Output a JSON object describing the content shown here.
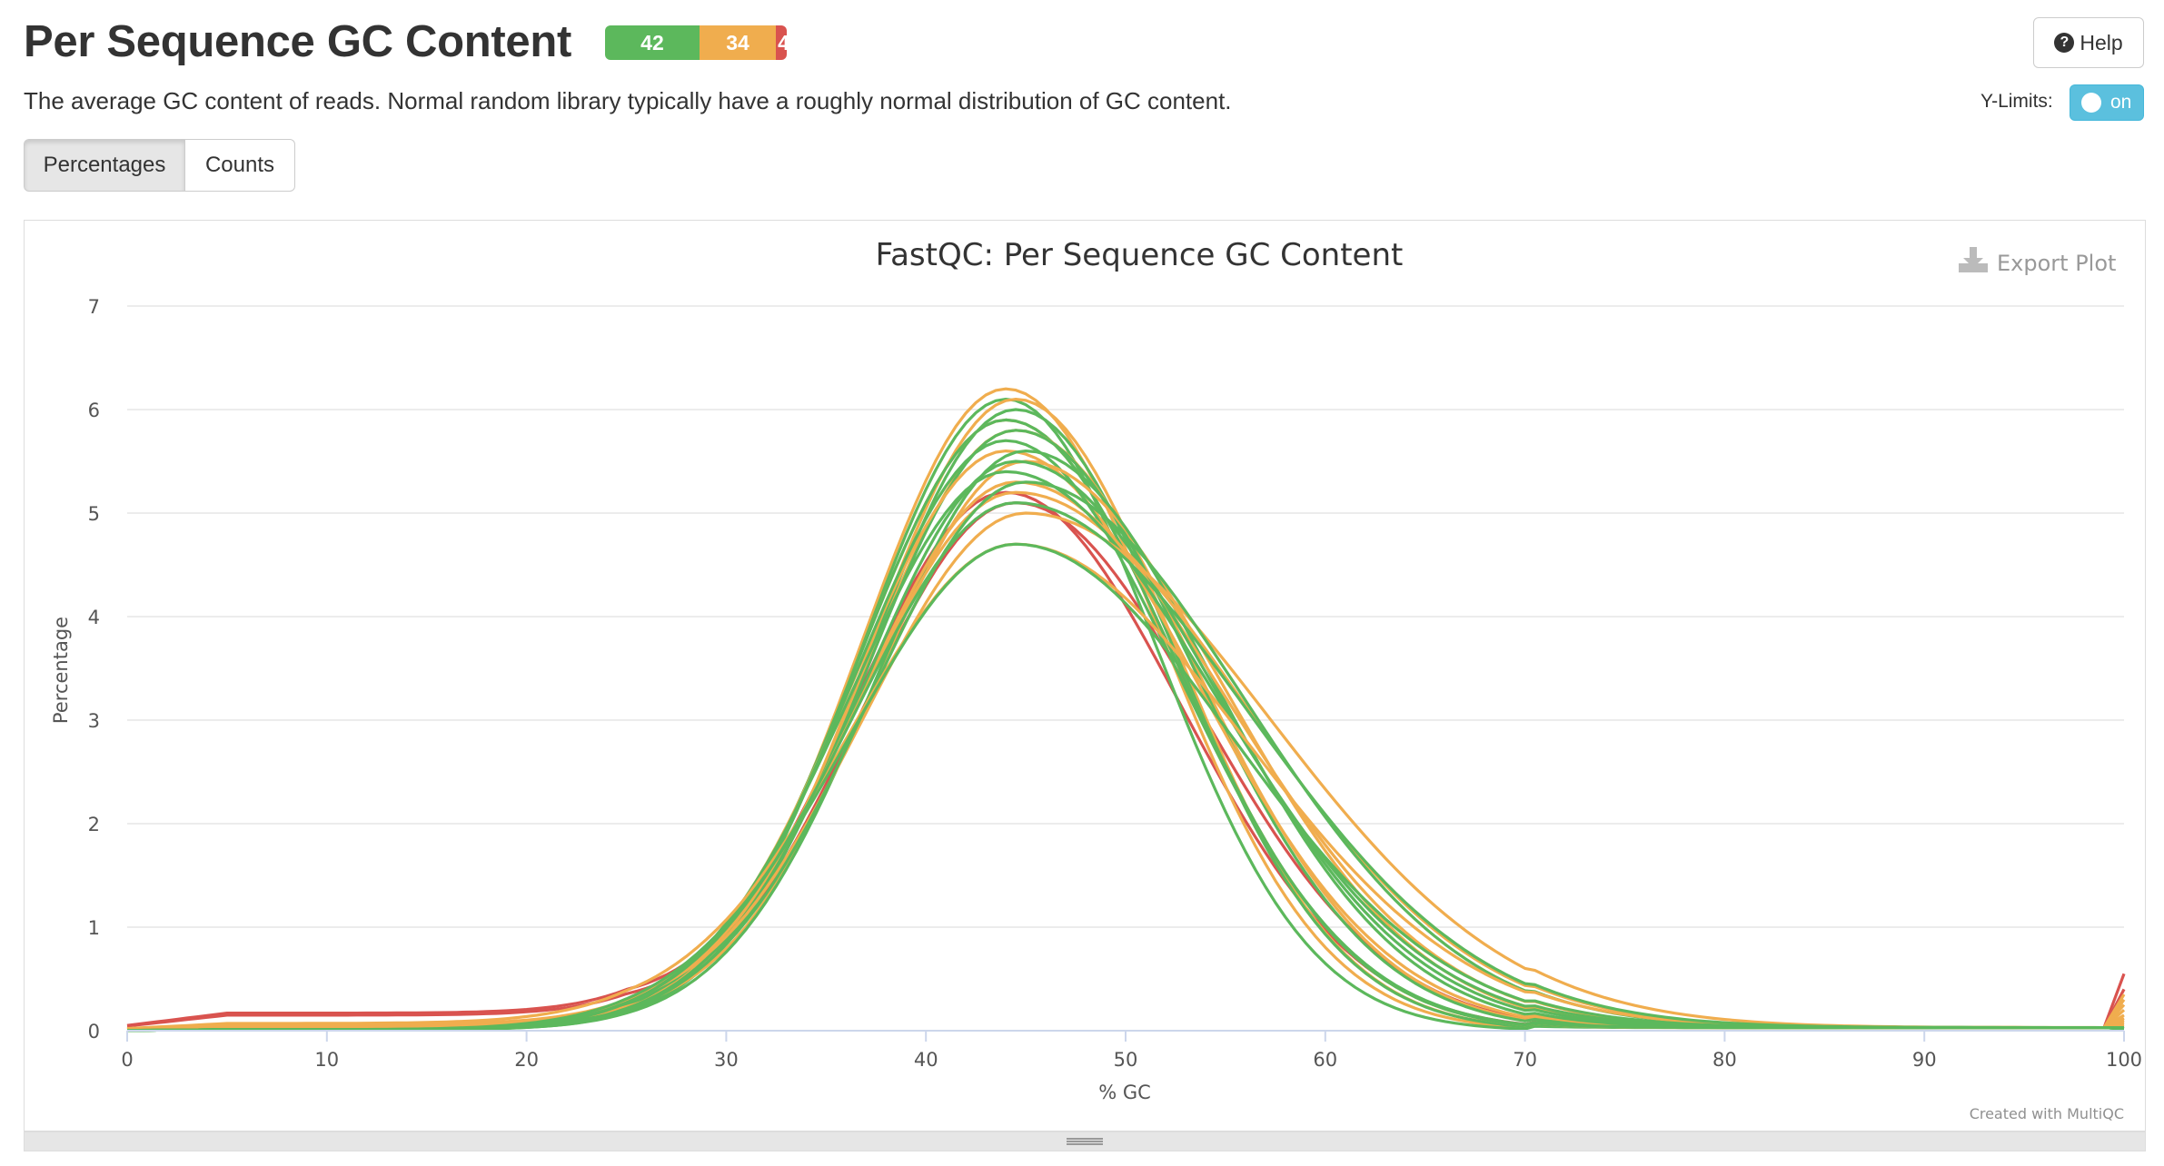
{
  "header": {
    "title": "Per Sequence GC Content",
    "description": "The average GC content of reads. Normal random library typically have a roughly normal distribution of GC content.",
    "help_label": "Help",
    "ylimits_label": "Y-Limits:",
    "ylimits_toggle": "on"
  },
  "status_bar": {
    "pass": "42",
    "warn": "34",
    "fail": "4",
    "colors": {
      "pass": "#5cb85c",
      "warn": "#f0ad4e",
      "fail": "#d9534f"
    }
  },
  "toggle_buttons": {
    "percentages": "Percentages",
    "counts": "Counts"
  },
  "plot": {
    "export_label": "Export Plot",
    "credit": "Created with MultiQC"
  },
  "chart_data": {
    "type": "line",
    "title": "FastQC: Per Sequence GC Content",
    "xlabel": "% GC",
    "ylabel": "Percentage",
    "xlim": [
      0,
      100
    ],
    "ylim": [
      0,
      7
    ],
    "xticks": [
      0,
      10,
      20,
      30,
      40,
      50,
      60,
      70,
      80,
      90,
      100
    ],
    "yticks": [
      0,
      1,
      2,
      3,
      4,
      5,
      6,
      7
    ],
    "grid": true,
    "legend": "none",
    "colors": {
      "pass": "#5cb85c",
      "warn": "#f0ad4e",
      "fail": "#d9534f"
    },
    "series": [
      {
        "status": "pass",
        "peak_x": 44,
        "peak_y": 6.1,
        "width": 7.2,
        "right_tail": 1.05,
        "baseline": 0.01,
        "end_y": 0.02
      },
      {
        "status": "pass",
        "peak_x": 44.5,
        "peak_y": 6.0,
        "width": 7.3,
        "right_tail": 1.1,
        "baseline": 0.01,
        "end_y": 0.02
      },
      {
        "status": "pass",
        "peak_x": 44,
        "peak_y": 5.9,
        "width": 7.4,
        "right_tail": 1.15,
        "baseline": 0.01,
        "end_y": 0.02
      },
      {
        "status": "pass",
        "peak_x": 44.5,
        "peak_y": 5.8,
        "width": 7.4,
        "right_tail": 1.2,
        "baseline": 0.01,
        "end_y": 0.03
      },
      {
        "status": "pass",
        "peak_x": 44,
        "peak_y": 5.7,
        "width": 7.5,
        "right_tail": 1.15,
        "baseline": 0.01,
        "end_y": 0.02
      },
      {
        "status": "pass",
        "peak_x": 45,
        "peak_y": 5.6,
        "width": 7.5,
        "right_tail": 1.25,
        "baseline": 0.01,
        "end_y": 0.03
      },
      {
        "status": "pass",
        "peak_x": 44.5,
        "peak_y": 5.5,
        "width": 7.6,
        "right_tail": 1.3,
        "baseline": 0.01,
        "end_y": 0.02
      },
      {
        "status": "pass",
        "peak_x": 44,
        "peak_y": 5.4,
        "width": 7.7,
        "right_tail": 1.35,
        "baseline": 0.01,
        "end_y": 0.03
      },
      {
        "status": "pass",
        "peak_x": 45,
        "peak_y": 5.3,
        "width": 7.8,
        "right_tail": 1.4,
        "baseline": 0.01,
        "end_y": 0.02
      },
      {
        "status": "pass",
        "peak_x": 44.5,
        "peak_y": 5.1,
        "width": 8.0,
        "right_tail": 1.45,
        "baseline": 0.01,
        "end_y": 0.02
      },
      {
        "status": "pass",
        "peak_x": 44.5,
        "peak_y": 4.7,
        "width": 8.3,
        "right_tail": 1.3,
        "baseline": 0.01,
        "end_y": 0.03
      },
      {
        "status": "warn",
        "peak_x": 44,
        "peak_y": 6.2,
        "width": 7.2,
        "right_tail": 1.1,
        "baseline": 0.03,
        "end_y": 0.05
      },
      {
        "status": "warn",
        "peak_x": 44.5,
        "peak_y": 6.1,
        "width": 7.3,
        "right_tail": 1.1,
        "baseline": 0.04,
        "end_y": 0.06
      },
      {
        "status": "warn",
        "peak_x": 44,
        "peak_y": 5.9,
        "width": 7.4,
        "right_tail": 1.15,
        "baseline": 0.05,
        "end_y": 0.1
      },
      {
        "status": "warn",
        "peak_x": 44.5,
        "peak_y": 5.8,
        "width": 7.5,
        "right_tail": 1.2,
        "baseline": 0.04,
        "end_y": 0.08
      },
      {
        "status": "warn",
        "peak_x": 44,
        "peak_y": 5.6,
        "width": 7.6,
        "right_tail": 1.25,
        "baseline": 0.05,
        "end_y": 0.12
      },
      {
        "status": "warn",
        "peak_x": 45,
        "peak_y": 5.5,
        "width": 7.6,
        "right_tail": 1.3,
        "baseline": 0.06,
        "end_y": 0.15
      },
      {
        "status": "warn",
        "peak_x": 44.5,
        "peak_y": 5.3,
        "width": 7.8,
        "right_tail": 1.35,
        "baseline": 0.06,
        "end_y": 0.2
      },
      {
        "status": "warn",
        "peak_x": 44.5,
        "peak_y": 5.2,
        "width": 7.9,
        "right_tail": 1.45,
        "baseline": 0.05,
        "end_y": 0.25
      },
      {
        "status": "warn",
        "peak_x": 45,
        "peak_y": 5.0,
        "width": 8.1,
        "right_tail": 1.5,
        "baseline": 0.06,
        "end_y": 0.3
      },
      {
        "status": "warn",
        "peak_x": 44.5,
        "peak_y": 4.7,
        "width": 8.4,
        "right_tail": 1.35,
        "baseline": 0.07,
        "end_y": 0.35
      },
      {
        "status": "fail",
        "peak_x": 44,
        "peak_y": 5.2,
        "width": 7.6,
        "right_tail": 1.15,
        "baseline": 0.17,
        "end_y": 0.55
      },
      {
        "status": "fail",
        "peak_x": 44.5,
        "peak_y": 5.1,
        "width": 7.7,
        "right_tail": 1.2,
        "baseline": 0.15,
        "end_y": 0.4
      }
    ]
  }
}
